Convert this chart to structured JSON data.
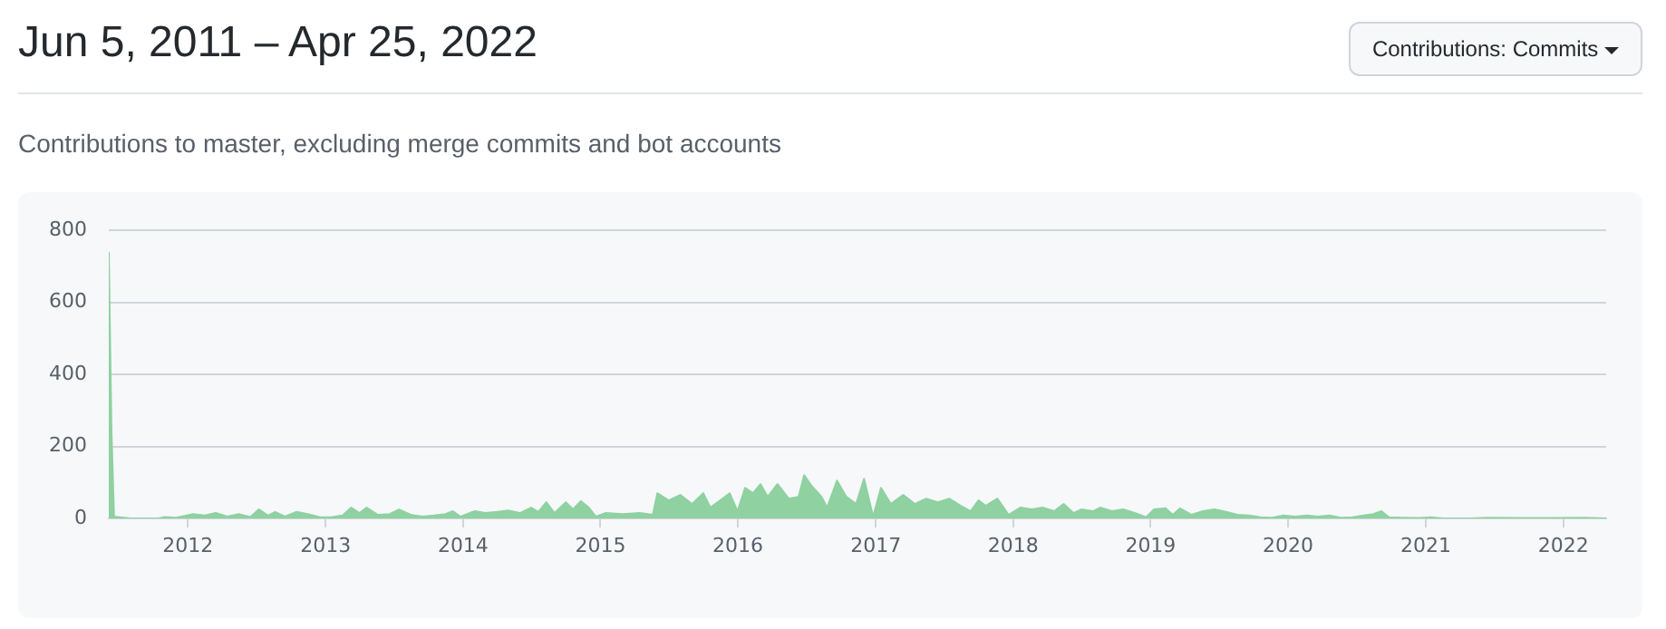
{
  "chart_data": {
    "type": "area",
    "title": "Jun 5, 2011 – Apr 25, 2022",
    "subtitle": "Contributions to master, excluding merge commits and bot accounts",
    "annotations": [
      "Contributions: Commits"
    ],
    "x": [
      "2011-06-05",
      "2011-06-12",
      "2011-06-19",
      "2011-08-01",
      "2011-10-15",
      "2011-11-01",
      "2011-12-01",
      "2012-01-15",
      "2012-02-15",
      "2012-03-15",
      "2012-04-15",
      "2012-05-15",
      "2012-06-15",
      "2012-07-08",
      "2012-08-01",
      "2012-08-20",
      "2012-09-15",
      "2012-10-15",
      "2012-11-15",
      "2012-12-15",
      "2013-01-15",
      "2013-02-15",
      "2013-03-10",
      "2013-04-01",
      "2013-04-20",
      "2013-05-20",
      "2013-06-20",
      "2013-07-15",
      "2013-08-15",
      "2013-09-15",
      "2013-10-15",
      "2013-11-15",
      "2013-12-05",
      "2013-12-25",
      "2014-02-01",
      "2014-03-01",
      "2014-04-01",
      "2014-05-01",
      "2014-06-01",
      "2014-07-01",
      "2014-07-20",
      "2014-08-10",
      "2014-09-01",
      "2014-10-01",
      "2014-10-20",
      "2014-11-10",
      "2014-12-01",
      "2014-12-20",
      "2015-01-15",
      "2015-03-01",
      "2015-04-15",
      "2015-05-20",
      "2015-06-01",
      "2015-07-01",
      "2015-08-01",
      "2015-09-01",
      "2015-10-01",
      "2015-10-20",
      "2015-11-15",
      "2015-12-10",
      "2015-12-31",
      "2016-01-20",
      "2016-02-10",
      "2016-03-01",
      "2016-03-20",
      "2016-04-15",
      "2016-05-15",
      "2016-06-10",
      "2016-06-25",
      "2016-07-15",
      "2016-08-10",
      "2016-08-25",
      "2016-09-20",
      "2016-10-15",
      "2016-11-10",
      "2016-12-01",
      "2016-12-25",
      "2017-01-15",
      "2017-02-10",
      "2017-03-15",
      "2017-04-15",
      "2017-05-15",
      "2017-06-15",
      "2017-07-15",
      "2017-08-15",
      "2017-09-10",
      "2017-10-01",
      "2017-10-20",
      "2017-11-20",
      "2017-12-20",
      "2018-01-20",
      "2018-02-20",
      "2018-03-20",
      "2018-04-20",
      "2018-05-15",
      "2018-06-10",
      "2018-07-01",
      "2018-08-01",
      "2018-08-20",
      "2018-09-20",
      "2018-10-20",
      "2018-11-20",
      "2018-12-20",
      "2019-01-10",
      "2019-02-10",
      "2019-03-01",
      "2019-03-20",
      "2019-04-20",
      "2019-05-20",
      "2019-06-20",
      "2019-07-20",
      "2019-08-20",
      "2019-09-20",
      "2019-10-20",
      "2019-11-20",
      "2019-12-20",
      "2020-01-20",
      "2020-02-20",
      "2020-03-20",
      "2020-04-20",
      "2020-05-20",
      "2020-06-20",
      "2020-07-20",
      "2020-08-15",
      "2020-09-05",
      "2020-09-25",
      "2020-11-01",
      "2020-12-15",
      "2021-01-15",
      "2021-02-15",
      "2021-05-01",
      "2021-06-15",
      "2021-09-01",
      "2021-12-01",
      "2022-03-01",
      "2022-04-25"
    ],
    "series": [
      {
        "color": "#8fd1a1",
        "values": [
          740,
          250,
          5,
          0,
          0,
          4,
          2,
          12,
          8,
          15,
          5,
          12,
          4,
          25,
          8,
          18,
          5,
          18,
          12,
          4,
          3,
          8,
          30,
          15,
          30,
          10,
          12,
          25,
          10,
          5,
          8,
          12,
          20,
          5,
          20,
          15,
          18,
          22,
          15,
          30,
          18,
          45,
          15,
          45,
          25,
          48,
          30,
          5,
          15,
          12,
          15,
          10,
          70,
          50,
          65,
          40,
          70,
          30,
          50,
          70,
          20,
          85,
          70,
          95,
          60,
          95,
          55,
          60,
          120,
          90,
          60,
          30,
          105,
          60,
          40,
          110,
          5,
          85,
          40,
          65,
          40,
          55,
          45,
          55,
          35,
          20,
          50,
          35,
          55,
          10,
          30,
          25,
          30,
          20,
          40,
          15,
          25,
          20,
          30,
          20,
          25,
          15,
          3,
          25,
          28,
          10,
          28,
          10,
          20,
          25,
          18,
          10,
          8,
          3,
          2,
          8,
          5,
          8,
          5,
          8,
          2,
          3,
          8,
          12,
          20,
          3,
          2,
          1,
          3,
          0,
          0,
          2,
          1,
          1,
          2,
          0
        ]
      }
    ],
    "xlim": [
      "2011-06-05",
      "2022-04-25"
    ],
    "xticks": [
      {
        "value": "2012-01-01",
        "label": "2012"
      },
      {
        "value": "2013-01-01",
        "label": "2013"
      },
      {
        "value": "2014-01-01",
        "label": "2014"
      },
      {
        "value": "2015-01-01",
        "label": "2015"
      },
      {
        "value": "2016-01-01",
        "label": "2016"
      },
      {
        "value": "2017-01-01",
        "label": "2017"
      },
      {
        "value": "2018-01-01",
        "label": "2018"
      },
      {
        "value": "2019-01-01",
        "label": "2019"
      },
      {
        "value": "2020-01-01",
        "label": "2020"
      },
      {
        "value": "2021-01-01",
        "label": "2021"
      },
      {
        "value": "2022-01-01",
        "label": "2022"
      }
    ],
    "ylim": [
      0,
      800
    ],
    "yticks": [
      0,
      200,
      400,
      600,
      800
    ],
    "grid": "y",
    "legend": false,
    "marker": "none",
    "line_style": "solid"
  }
}
